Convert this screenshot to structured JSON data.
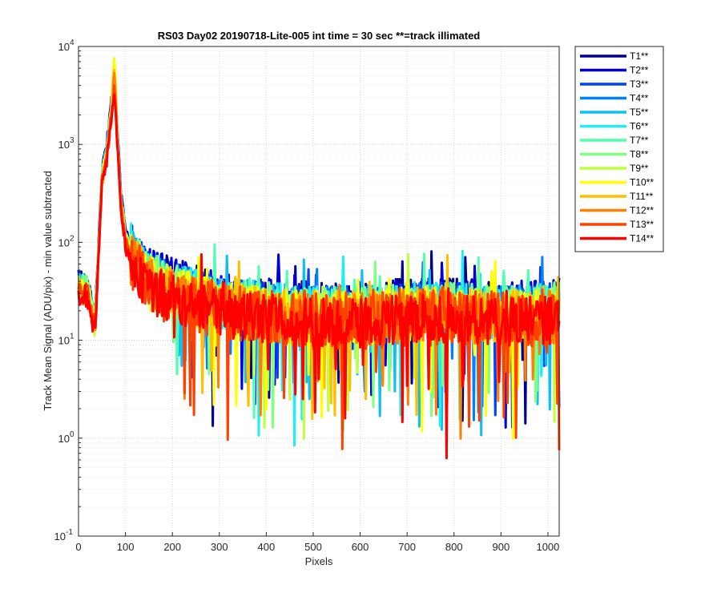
{
  "chart_data": {
    "type": "line",
    "title": "RS03 Day02 20190718-Lite-005 int time = 30 sec   **=track illimated",
    "xlabel": "Pixels",
    "ylabel": "Track Mean Signal (ADU/pix) - min value subtracted",
    "xlim": [
      0,
      1024
    ],
    "ylim": [
      0.1,
      10000
    ],
    "yscale": "log",
    "grid": true,
    "legend_position": "outside-top-right",
    "x_ticks": [
      0,
      100,
      200,
      300,
      400,
      500,
      600,
      700,
      800,
      900,
      1000
    ],
    "y_ticks": [
      {
        "value": 0.1,
        "mantissa": "10",
        "exponent": "-1"
      },
      {
        "value": 1,
        "mantissa": "10",
        "exponent": "0"
      },
      {
        "value": 10,
        "mantissa": "10",
        "exponent": "1"
      },
      {
        "value": 100,
        "mantissa": "10",
        "exponent": "2"
      },
      {
        "value": 1000,
        "mantissa": "10",
        "exponent": "3"
      },
      {
        "value": 10000,
        "mantissa": "10",
        "exponent": "4"
      }
    ],
    "profile_anchors": {
      "x": [
        0,
        20,
        35,
        50,
        60,
        70,
        76,
        82,
        90,
        100,
        120,
        150,
        200,
        300,
        400,
        500,
        600,
        700,
        800,
        900,
        1024
      ],
      "y": [
        40,
        35,
        15,
        500,
        900,
        2500,
        5000,
        1500,
        300,
        120,
        70,
        45,
        35,
        25,
        22,
        20,
        20,
        22,
        22,
        20,
        22
      ]
    },
    "series": [
      {
        "name": "T1**",
        "color": "#00008f",
        "peak": 2600,
        "baseline": 1.05,
        "noise": 0.55
      },
      {
        "name": "T2**",
        "color": "#0000df",
        "peak": 2900,
        "baseline": 1.05,
        "noise": 0.55
      },
      {
        "name": "T3**",
        "color": "#0040ff",
        "peak": 3200,
        "baseline": 1.0,
        "noise": 0.5
      },
      {
        "name": "T4**",
        "color": "#0080ff",
        "peak": 3500,
        "baseline": 1.0,
        "noise": 0.5
      },
      {
        "name": "T5**",
        "color": "#10bfef",
        "peak": 4000,
        "baseline": 0.95,
        "noise": 0.55
      },
      {
        "name": "T6**",
        "color": "#20efef",
        "peak": 4500,
        "baseline": 0.95,
        "noise": 0.55
      },
      {
        "name": "T7**",
        "color": "#50ffaf",
        "peak": 5000,
        "baseline": 0.95,
        "noise": 0.5
      },
      {
        "name": "T8**",
        "color": "#80ff80",
        "peak": 6000,
        "baseline": 0.95,
        "noise": 0.55
      },
      {
        "name": "T9**",
        "color": "#bfff40",
        "peak": 7500,
        "baseline": 0.9,
        "noise": 0.5
      },
      {
        "name": "T10**",
        "color": "#ffff00",
        "peak": 6500,
        "baseline": 0.85,
        "noise": 0.55
      },
      {
        "name": "T11**",
        "color": "#ffbf00",
        "peak": 5500,
        "baseline": 0.85,
        "noise": 0.55
      },
      {
        "name": "T12**",
        "color": "#ff8000",
        "peak": 4500,
        "baseline": 0.8,
        "noise": 0.55
      },
      {
        "name": "T13**",
        "color": "#ff4000",
        "peak": 3500,
        "baseline": 0.8,
        "noise": 0.6
      },
      {
        "name": "T14**",
        "color": "#ff0000",
        "peak": 2800,
        "baseline": 0.75,
        "noise": 0.5
      }
    ]
  }
}
